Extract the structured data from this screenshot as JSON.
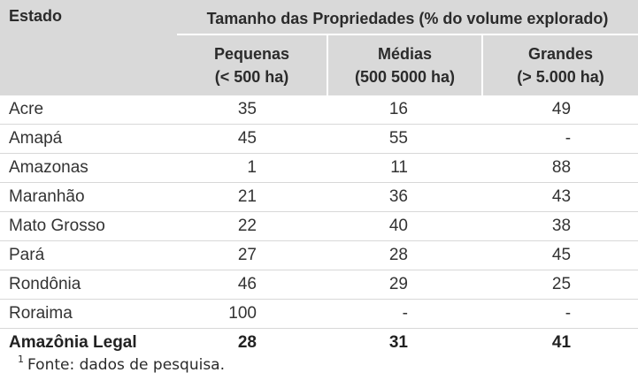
{
  "table": {
    "corner_label": "Estado",
    "group_title": "Tamanho das Propriedades (% do volume explorado)",
    "columns": [
      {
        "name": "Pequenas",
        "range": "(< 500 ha)"
      },
      {
        "name": "Médias",
        "range": "(500  5000 ha)"
      },
      {
        "name": "Grandes",
        "range": "(> 5.000 ha)"
      }
    ],
    "rows": [
      {
        "state": "Acre",
        "small": "35",
        "medium": "16",
        "large": "49"
      },
      {
        "state": "Amapá",
        "small": "45",
        "medium": "55",
        "large": "-"
      },
      {
        "state": "Amazonas",
        "small": "1",
        "medium": "11",
        "large": "88"
      },
      {
        "state": "Maranhão",
        "small": "21",
        "medium": "36",
        "large": "43"
      },
      {
        "state": "Mato Grosso",
        "small": "22",
        "medium": "40",
        "large": "38"
      },
      {
        "state": "Pará",
        "small": "27",
        "medium": "28",
        "large": "45"
      },
      {
        "state": "Rondônia",
        "small": "46",
        "medium": "29",
        "large": "25"
      },
      {
        "state": "Roraima",
        "small": "100",
        "medium": "-",
        "large": "-"
      },
      {
        "state": "Amazônia Legal",
        "small": "28",
        "medium": "31",
        "large": "41"
      }
    ]
  },
  "footnote": {
    "marker": "1",
    "text": "Fonte: dados de pesquisa."
  }
}
